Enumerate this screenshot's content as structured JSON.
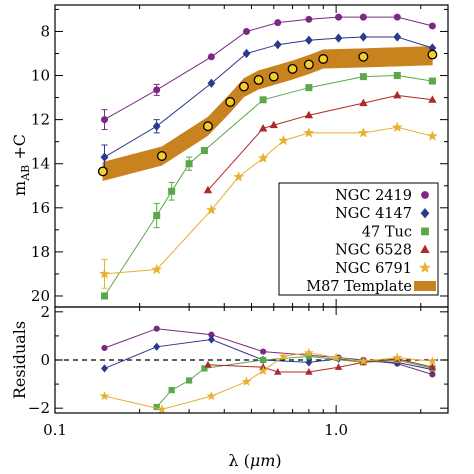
{
  "chart_data": {
    "type": "line",
    "x_scale": "log",
    "xlim": [
      0.1,
      2.5
    ],
    "x_ticks": [
      0.1,
      1.0
    ],
    "x_tick_labels": [
      "0.1",
      "1.0"
    ],
    "xlabel_prefix": "λ (",
    "xlabel_unit": "μm",
    "xlabel_suffix": ")",
    "top_panel": {
      "ylim": [
        20.5,
        6.8
      ],
      "y_ticks": [
        8,
        10,
        12,
        14,
        16,
        18,
        20
      ],
      "y_tick_labels": [
        "8",
        "10",
        "12",
        "14",
        "16",
        "18",
        "20"
      ],
      "ylabel_m": "m",
      "ylabel_sub": "AB",
      "ylabel_rest": " +C",
      "legend_position": "lower-right",
      "series": [
        {
          "name": "NGC 2419",
          "marker": "circle",
          "color": "#7a2a82",
          "x": [
            0.15,
            0.23,
            0.36,
            0.48,
            0.62,
            0.8,
            1.02,
            1.25,
            1.65,
            2.2
          ],
          "y": [
            12.0,
            10.65,
            9.15,
            8.0,
            7.6,
            7.45,
            7.35,
            7.35,
            7.35,
            7.75
          ],
          "err": [
            0.45,
            0.25,
            0,
            0,
            0,
            0,
            0,
            0,
            0,
            0
          ]
        },
        {
          "name": "NGC 4147",
          "marker": "diamond",
          "color": "#2a3a8c",
          "x": [
            0.15,
            0.23,
            0.36,
            0.48,
            0.62,
            0.8,
            1.02,
            1.25,
            1.65,
            2.2
          ],
          "y": [
            13.7,
            12.3,
            10.35,
            9.0,
            8.6,
            8.4,
            8.3,
            8.25,
            8.25,
            8.75
          ],
          "err": [
            0.55,
            0.3,
            0,
            0,
            0,
            0,
            0,
            0,
            0,
            0
          ]
        },
        {
          "name": "47 Tuc",
          "marker": "square",
          "color": "#5aa84a",
          "x": [
            0.15,
            0.23,
            0.26,
            0.3,
            0.34,
            0.55,
            0.8,
            1.25,
            1.65,
            2.2
          ],
          "y": [
            20.0,
            16.35,
            15.25,
            14.0,
            13.4,
            11.1,
            10.55,
            10.05,
            10.0,
            10.25
          ],
          "err": [
            0,
            0.55,
            0.4,
            0.3,
            0,
            0,
            0,
            0,
            0,
            0
          ]
        },
        {
          "name": "NGC 6528",
          "marker": "triangle",
          "color": "#b02828",
          "x": [
            0.35,
            0.55,
            0.6,
            0.8,
            1.25,
            1.65,
            2.2
          ],
          "y": [
            15.2,
            12.4,
            12.25,
            11.8,
            11.25,
            10.9,
            11.1
          ],
          "err": [
            0,
            0,
            0,
            0,
            0,
            0,
            0
          ]
        },
        {
          "name": "NGC 6791",
          "marker": "star",
          "color": "#e8b030",
          "x": [
            0.15,
            0.23,
            0.36,
            0.45,
            0.55,
            0.65,
            0.8,
            1.25,
            1.65,
            2.2
          ],
          "y": [
            19.0,
            18.8,
            16.1,
            14.6,
            13.75,
            12.95,
            12.6,
            12.6,
            12.35,
            12.75
          ],
          "err": [
            0.65,
            0,
            0,
            0,
            0,
            0,
            0,
            0,
            0,
            0
          ]
        }
      ],
      "template": {
        "name": "M87 Template",
        "color": "#c8821e",
        "band_width": 0.42,
        "x": [
          0.148,
          0.24,
          0.35,
          0.42,
          0.47,
          0.53,
          0.6,
          0.7,
          0.8,
          0.9,
          1.25,
          2.2
        ],
        "y": [
          14.35,
          13.65,
          12.3,
          11.25,
          10.55,
          10.2,
          10.0,
          9.75,
          9.5,
          9.25,
          9.2,
          9.1
        ],
        "marked_x": [
          0.148,
          0.24,
          0.35,
          0.42,
          0.47,
          0.53,
          0.6,
          0.7,
          0.8,
          0.9,
          1.25,
          2.2
        ],
        "marked_y": [
          14.35,
          13.65,
          12.3,
          11.2,
          10.5,
          10.2,
          10.05,
          9.7,
          9.5,
          9.25,
          9.15,
          9.05
        ]
      }
    },
    "bottom_panel": {
      "ylabel": "Residuals",
      "ylim": [
        -2.2,
        2.2
      ],
      "y_ticks": [
        -2,
        0,
        2
      ],
      "y_tick_labels": [
        "−2",
        "0",
        "2"
      ],
      "zero_line": "dashed",
      "series": [
        {
          "name": "NGC 2419",
          "x": [
            0.15,
            0.23,
            0.36,
            0.55,
            0.8,
            1.02,
            1.25,
            1.65,
            2.2
          ],
          "y": [
            0.5,
            1.3,
            1.05,
            0.35,
            0.2,
            0.1,
            0.0,
            -0.15,
            -0.6
          ]
        },
        {
          "name": "NGC 4147",
          "x": [
            0.15,
            0.23,
            0.36,
            0.55,
            0.8,
            1.02,
            1.25,
            1.65,
            2.2
          ],
          "y": [
            -0.35,
            0.55,
            0.85,
            0.0,
            -0.1,
            0.05,
            -0.05,
            -0.1,
            -0.4
          ]
        },
        {
          "name": "47 Tuc",
          "x": [
            0.23,
            0.26,
            0.3,
            0.34,
            0.55,
            0.8,
            1.25,
            1.65,
            2.2
          ],
          "y": [
            -1.95,
            -1.25,
            -0.85,
            -0.35,
            0.0,
            0.15,
            -0.1,
            0.0,
            -0.35
          ]
        },
        {
          "name": "NGC 6528",
          "x": [
            0.35,
            0.55,
            0.62,
            0.8,
            1.02,
            1.25,
            1.65,
            2.2
          ],
          "y": [
            -0.2,
            -0.3,
            -0.5,
            -0.5,
            -0.3,
            -0.1,
            0.05,
            -0.3
          ]
        },
        {
          "name": "NGC 6791",
          "x": [
            0.15,
            0.24,
            0.36,
            0.48,
            0.55,
            0.65,
            0.8,
            1.0,
            1.25,
            1.65,
            2.2
          ],
          "y": [
            -1.5,
            -2.05,
            -1.5,
            -0.9,
            -0.45,
            0.15,
            0.3,
            0.1,
            -0.05,
            0.1,
            -0.05
          ]
        }
      ]
    }
  }
}
